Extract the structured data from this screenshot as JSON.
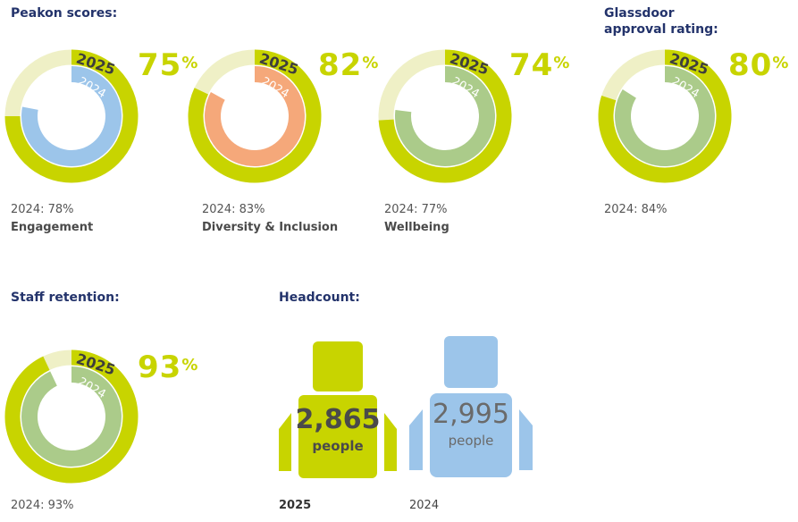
{
  "peakon": {
    "heading": "Peakon scores:",
    "year_current": "2025",
    "year_previous": "2024",
    "items": [
      {
        "label": "Engagement",
        "value_2025": 75,
        "value_2024": 78,
        "pct_text": "75",
        "prev_text": "2024: 78%",
        "color_2024": "#9cc5ea"
      },
      {
        "label": "Diversity & Inclusion",
        "value_2025": 82,
        "value_2024": 83,
        "pct_text": "82",
        "prev_text": "2024: 83%",
        "color_2024": "#f5a87a"
      },
      {
        "label": "Wellbeing",
        "value_2025": 74,
        "value_2024": 77,
        "pct_text": "74",
        "prev_text": "2024: 77%",
        "color_2024": "#abcb8a"
      }
    ]
  },
  "glassdoor": {
    "heading_line1": "Glassdoor",
    "heading_line2": "approval rating:",
    "value_2025": 80,
    "value_2024": 84,
    "pct_text": "80",
    "prev_text": "2024: 84%",
    "color_2024": "#abcb8a"
  },
  "retention": {
    "heading": "Staff retention:",
    "value_2025": 93,
    "value_2024": 93,
    "pct_text": "93",
    "prev_text": "2024: 93%",
    "color_2024": "#abcb8a"
  },
  "headcount": {
    "heading": "Headcount:",
    "current": {
      "number": "2,865",
      "unit": "people",
      "year": "2025"
    },
    "previous": {
      "number": "2,995",
      "unit": "people",
      "year": "2024"
    }
  },
  "percent_sign": "%",
  "colors": {
    "accent_2025": "#c8d400",
    "track_2025": "#eff0c6",
    "heading": "#23336b",
    "headcount_2025": "#c8d400",
    "headcount_2024": "#9cc5ea"
  },
  "chart_data": [
    {
      "type": "donut",
      "title": "Engagement",
      "series": [
        {
          "name": "2025",
          "values": [
            75
          ]
        },
        {
          "name": "2024",
          "values": [
            78
          ]
        }
      ],
      "ylim": [
        0,
        100
      ]
    },
    {
      "type": "donut",
      "title": "Diversity & Inclusion",
      "series": [
        {
          "name": "2025",
          "values": [
            82
          ]
        },
        {
          "name": "2024",
          "values": [
            83
          ]
        }
      ],
      "ylim": [
        0,
        100
      ]
    },
    {
      "type": "donut",
      "title": "Wellbeing",
      "series": [
        {
          "name": "2025",
          "values": [
            74
          ]
        },
        {
          "name": "2024",
          "values": [
            77
          ]
        }
      ],
      "ylim": [
        0,
        100
      ]
    },
    {
      "type": "donut",
      "title": "Glassdoor approval rating:",
      "series": [
        {
          "name": "2025",
          "values": [
            80
          ]
        },
        {
          "name": "2024",
          "values": [
            84
          ]
        }
      ],
      "ylim": [
        0,
        100
      ]
    },
    {
      "type": "donut",
      "title": "Staff retention:",
      "series": [
        {
          "name": "2025",
          "values": [
            93
          ]
        },
        {
          "name": "2024",
          "values": [
            93
          ]
        }
      ],
      "ylim": [
        0,
        100
      ]
    },
    {
      "type": "bar",
      "title": "Headcount:",
      "categories": [
        "2025",
        "2024"
      ],
      "values": [
        2865,
        2995
      ]
    }
  ]
}
